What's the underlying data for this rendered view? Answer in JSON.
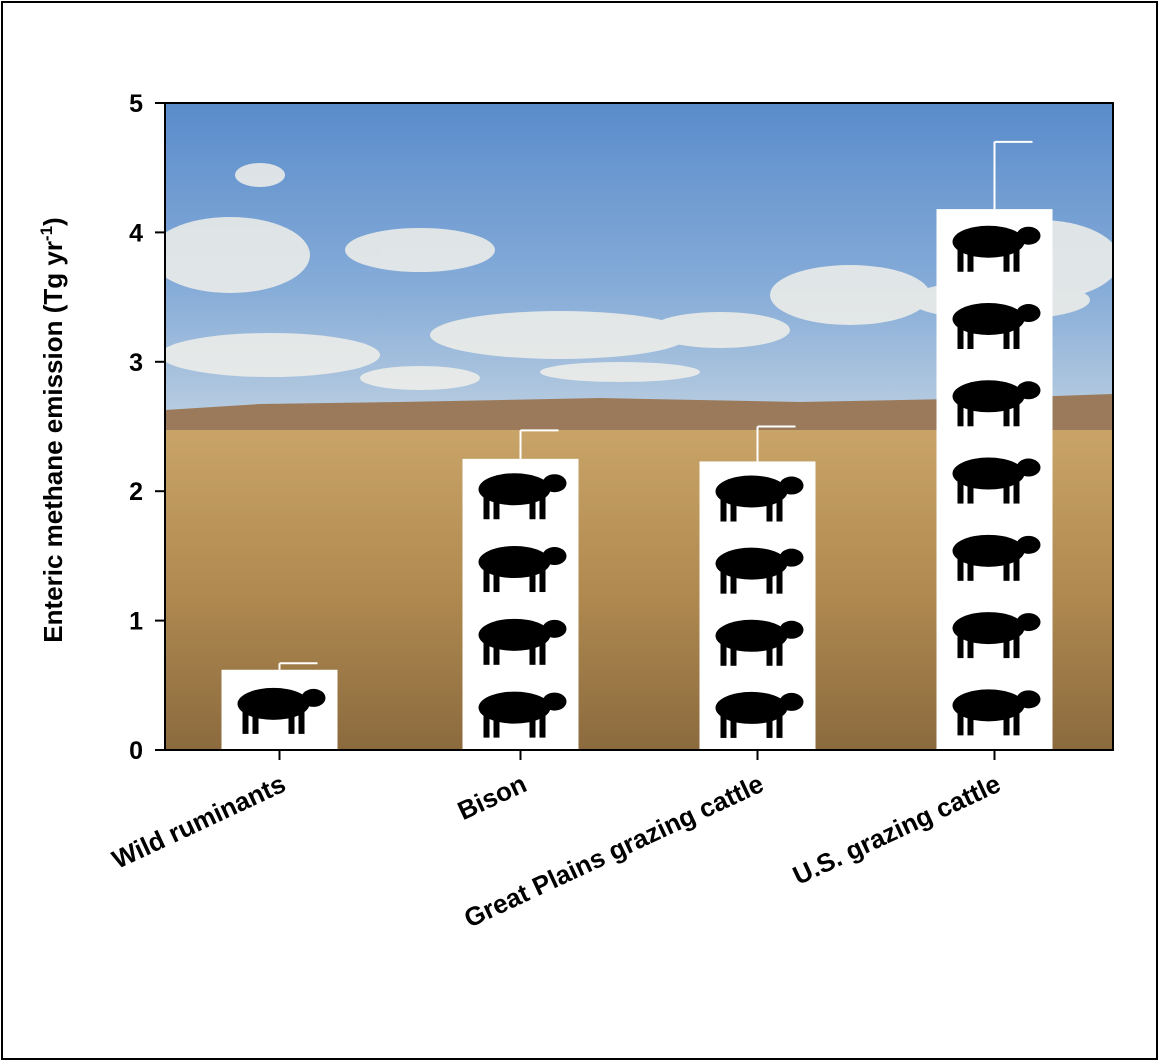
{
  "chart_data": {
    "type": "bar",
    "y_label_parts": [
      "Enteric methane emission (Tg yr",
      "-1",
      ")"
    ],
    "categories": [
      "Wild ruminants",
      "Bison",
      "Great Plains grazing cattle",
      "U.S. grazing cattle"
    ],
    "values": [
      0.62,
      2.25,
      2.23,
      4.18
    ],
    "errors": [
      0.05,
      0.22,
      0.27,
      0.52
    ],
    "color": "#ffffff",
    "ylim": [
      0,
      5
    ],
    "yticks": [
      0,
      1,
      2,
      3,
      4,
      5
    ]
  }
}
